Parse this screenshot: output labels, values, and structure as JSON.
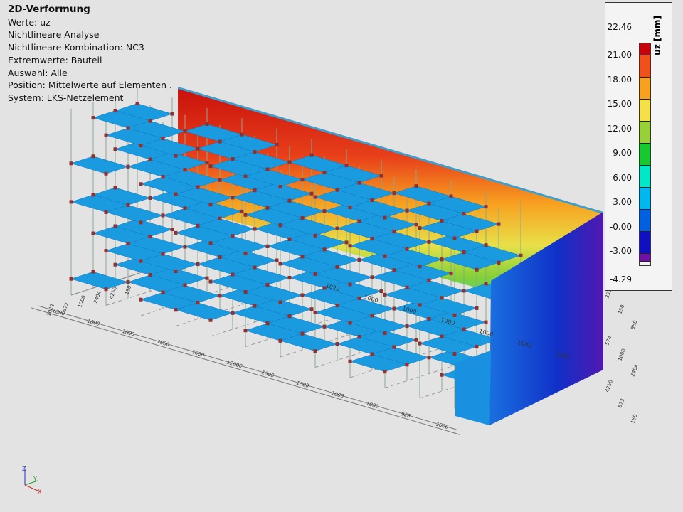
{
  "info": {
    "title": "2D-Verformung",
    "lines": [
      "Werte: uz",
      "Nichtlineare Analyse",
      "Nichtlineare Kombination: NC3",
      "Extremwerte: Bauteil",
      "Auswahl: Alle",
      "Position: Mittelwerte auf Elementen .",
      "System: LKS-Netzelement"
    ]
  },
  "legend": {
    "unit": "uz [mm]",
    "max": "22.46",
    "min": "-4.29",
    "values": [
      "21.00",
      "18.00",
      "15.00",
      "12.00",
      "9.00",
      "6.00",
      "3.00",
      "-0.00",
      "-3.00"
    ],
    "colors": [
      "#c8000a",
      "#f0501a",
      "#f8a020",
      "#f4e048",
      "#98d038",
      "#18c830",
      "#00e8c8",
      "#00b8f0",
      "#0060e0",
      "#1010c0",
      "#7010a8"
    ]
  },
  "dimensions": {
    "length_labels": [
      "1022",
      "1000",
      "1000",
      "1000",
      "1000",
      "1000",
      "1000"
    ],
    "front_labels": [
      "1000",
      "1000",
      "1000",
      "1000",
      "1000",
      "12000",
      "1000",
      "1000",
      "1000",
      "1000",
      "928",
      "1000"
    ],
    "side_labels": [
      "1022",
      "672",
      "1000",
      "2404",
      "4250",
      "150",
      "3520",
      "150",
      "950",
      "574",
      "1000",
      "2404",
      "4250",
      "573",
      "150"
    ]
  },
  "axes": {
    "x": "X",
    "y": "Y",
    "z": "Z"
  },
  "colors": {
    "slab": "#1a9be0",
    "background": "#e3e3e3"
  }
}
